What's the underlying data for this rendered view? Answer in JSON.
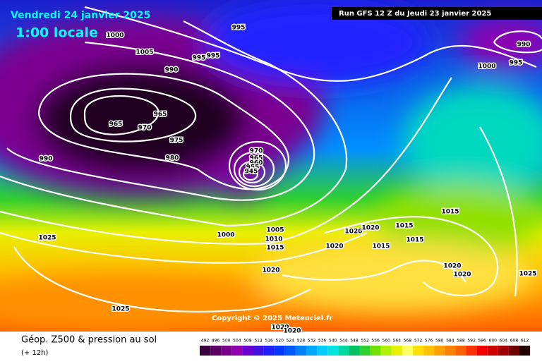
{
  "header": {
    "date": "Vendredi 24 janvier 2025",
    "time": "1:00 locale",
    "run": "Run GFS 12 Z du Jeudi 23 janvier 2025"
  },
  "copyright": "Copyright © 2025 Meteociel.fr",
  "footer": {
    "title": "Géop. Z500 & pression au sol",
    "subtitle": "(+ 12h)"
  },
  "isobar_labels": [
    1000,
    1005,
    995,
    995,
    995,
    990,
    965,
    965,
    970,
    975,
    980,
    990,
    970,
    965,
    960,
    955,
    945,
    1000,
    1005,
    1010,
    1015,
    1025,
    1020,
    1020,
    1020,
    1015,
    1015,
    1015,
    1015,
    1020,
    1020,
    1020,
    1025,
    1025,
    990,
    995,
    1000,
    1020,
    1020
  ],
  "scale": {
    "levels": [
      492,
      496,
      500,
      504,
      508,
      512,
      516,
      520,
      524,
      528,
      532,
      536,
      540,
      544,
      548,
      552,
      556,
      560,
      564,
      568,
      572,
      576,
      580,
      584,
      588,
      592,
      596,
      600,
      604,
      608,
      612
    ],
    "colors": [
      "#3c0040",
      "#5a0060",
      "#780088",
      "#9000b0",
      "#6a00d0",
      "#4010e0",
      "#2020ff",
      "#0038ff",
      "#0058ff",
      "#0080ff",
      "#00a8ff",
      "#00ccff",
      "#00e4e0",
      "#00d8a0",
      "#00c060",
      "#30d030",
      "#70e000",
      "#b0f000",
      "#e8f000",
      "#ffff60",
      "#ffe000",
      "#ffc000",
      "#ffa000",
      "#ff8000",
      "#ff6000",
      "#ff3000",
      "#f00000",
      "#d00000",
      "#a00000",
      "#700000",
      "#200000"
    ]
  }
}
